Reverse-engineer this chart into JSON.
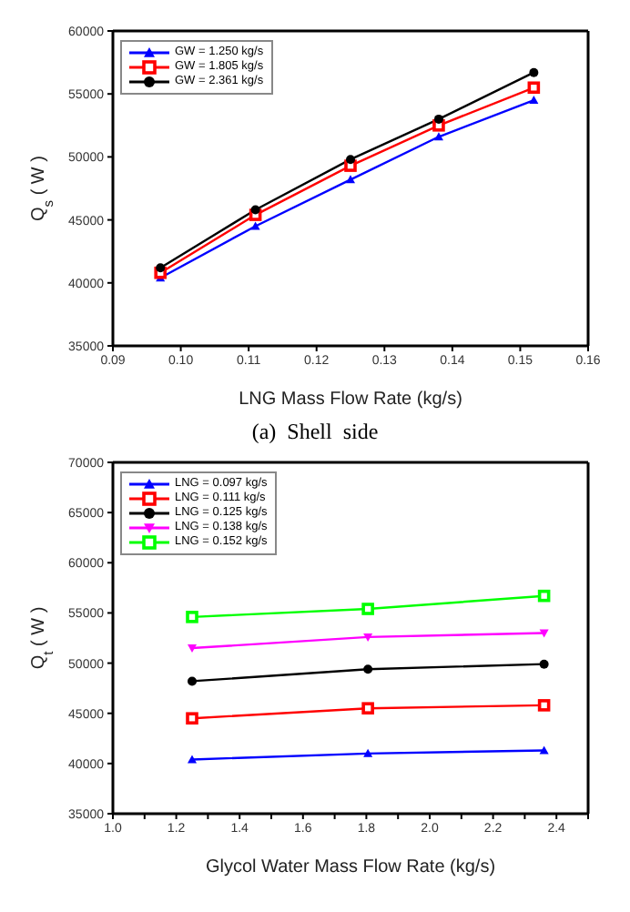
{
  "chart_data": [
    {
      "type": "line",
      "xlabel": "LNG Mass Flow Rate (kg/s)",
      "ylabel": "Q$_{s}$ ( W )",
      "x": [
        0.097,
        0.111,
        0.125,
        0.138,
        0.152
      ],
      "series": [
        {
          "name": "GW = 1.250 kg/s",
          "color": "#0000ff",
          "marker": "triangle",
          "values": [
            40400,
            44500,
            48200,
            51600,
            54500
          ]
        },
        {
          "name": "GW = 1.805 kg/s",
          "color": "#ff0000",
          "marker": "square",
          "values": [
            40800,
            45400,
            49300,
            52500,
            55500
          ]
        },
        {
          "name": "GW = 2.361 kg/s",
          "color": "#000000",
          "marker": "circle",
          "values": [
            41200,
            45800,
            49800,
            53000,
            56700
          ]
        }
      ],
      "xlim": [
        0.09,
        0.16
      ],
      "xticks": [
        0.09,
        {
          "value": 0.1,
          "label": "0.10"
        },
        0.11,
        0.12,
        0.13,
        0.14,
        0.15,
        0.16
      ],
      "ylim": [
        35000,
        60000
      ],
      "yticks": [
        35000,
        40000,
        45000,
        50000,
        55000,
        60000
      ],
      "grid": false,
      "legend": "top left",
      "line_style": "solid",
      "annotations": [
        "(a)  Shell  side"
      ]
    },
    {
      "type": "line",
      "xlabel": "Glycol Water Mass Flow Rate (kg/s)",
      "ylabel": "Q$_{t}$ ( W )",
      "x": [
        1.25,
        1.805,
        2.361
      ],
      "series": [
        {
          "name": "LNG = 0.097 kg/s",
          "color": "#0000ff",
          "marker": "triangle",
          "values": [
            40400,
            41000,
            41300
          ]
        },
        {
          "name": "LNG = 0.111 kg/s",
          "color": "#ff0000",
          "marker": "square",
          "values": [
            44500,
            45500,
            45800
          ]
        },
        {
          "name": "LNG = 0.125 kg/s",
          "color": "#000000",
          "marker": "circle",
          "values": [
            48200,
            49400,
            49900
          ]
        },
        {
          "name": "LNG = 0.138 kg/s",
          "color": "#ff00ff",
          "marker": "triangle-down",
          "values": [
            51500,
            52600,
            53000
          ]
        },
        {
          "name": "LNG = 0.152 kg/s",
          "color": "#00ff00",
          "marker": "square",
          "values": [
            54600,
            55400,
            56700
          ]
        }
      ],
      "xlim": [
        1.0,
        2.5
      ],
      "xticks": [
        {
          "value": 1,
          "label": "1.0"
        },
        {
          "value": 1.1,
          "label": null
        },
        1.2,
        {
          "value": 1.3,
          "label": null
        },
        1.4,
        {
          "value": 1.5,
          "label": null
        },
        1.6,
        {
          "value": 1.7,
          "label": null
        },
        1.8,
        {
          "value": 1.9,
          "label": null
        },
        {
          "value": 2,
          "label": "2.0"
        },
        {
          "value": 2.1,
          "label": null
        },
        2.2,
        {
          "value": 2.3,
          "label": null
        },
        2.4,
        {
          "value": 2.5,
          "label": null
        }
      ],
      "ylim": [
        35000,
        70000
      ],
      "yticks": [
        35000,
        40000,
        45000,
        50000,
        55000,
        60000,
        65000,
        70000
      ],
      "grid": false,
      "legend": "top left",
      "line_style": "solid"
    }
  ]
}
